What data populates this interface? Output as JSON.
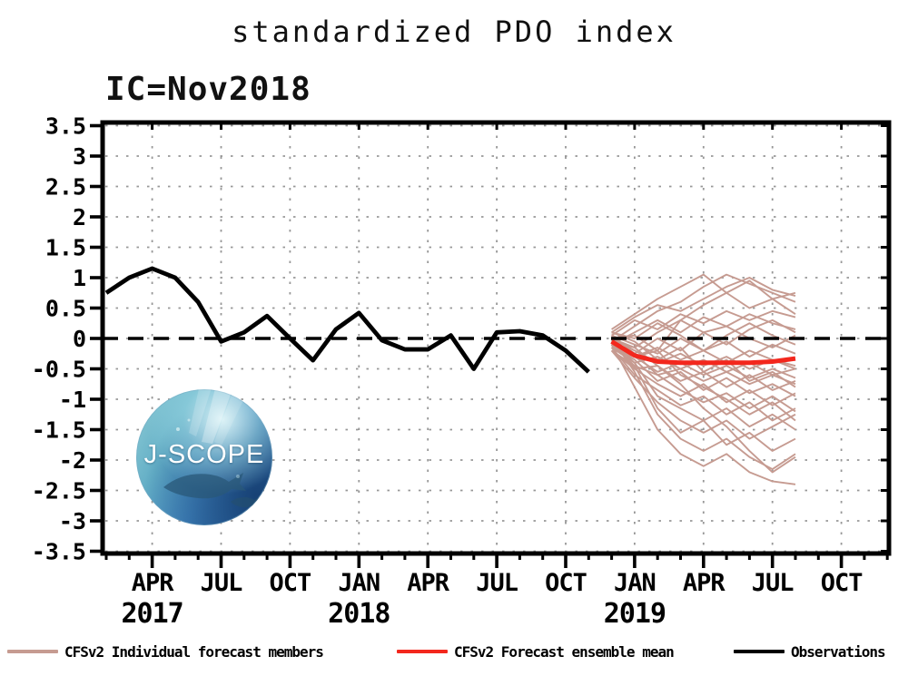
{
  "title": "standardized PDO index",
  "ic_label": "IC=Nov2018",
  "logo": {
    "text": "J-SCOPE"
  },
  "legend": {
    "members": {
      "label": "CFSv2 Individual forecast members",
      "color": "#c69b91"
    },
    "mean": {
      "label": "CFSv2 Forecast ensemble mean",
      "color": "#f3271d"
    },
    "obs": {
      "label": "Observations",
      "color": "#000000"
    }
  },
  "chart_data": {
    "type": "line",
    "title": "standardized PDO index",
    "initial_condition": "IC=Nov2018",
    "ylabel": "",
    "ylim": [
      -3.5,
      3.5
    ],
    "ytick_step": 0.5,
    "grid": "dotted",
    "zero_line": true,
    "x_unit": "months, index 0 = Feb 2017, axis spans Feb 2017 - Dec 2019",
    "x_ticks": [
      {
        "i": 2,
        "label": "APR"
      },
      {
        "i": 5,
        "label": "JUL"
      },
      {
        "i": 8,
        "label": "OCT"
      },
      {
        "i": 11,
        "label": "JAN"
      },
      {
        "i": 14,
        "label": "APR"
      },
      {
        "i": 17,
        "label": "JUL"
      },
      {
        "i": 20,
        "label": "OCT"
      },
      {
        "i": 23,
        "label": "JAN"
      },
      {
        "i": 26,
        "label": "APR"
      },
      {
        "i": 29,
        "label": "JUL"
      },
      {
        "i": 32,
        "label": "OCT"
      }
    ],
    "year_labels": [
      {
        "i": 2,
        "label": "2017"
      },
      {
        "i": 11,
        "label": "2018"
      },
      {
        "i": 23,
        "label": "2019"
      }
    ],
    "observations": {
      "name": "Observations",
      "color": "#000000",
      "start_index": 0,
      "values": [
        0.75,
        1.0,
        1.15,
        1.0,
        0.6,
        -0.05,
        0.1,
        0.37,
        0.0,
        -0.36,
        0.15,
        0.42,
        -0.03,
        -0.18,
        -0.18,
        0.05,
        -0.5,
        0.1,
        0.12,
        0.05,
        -0.2,
        -0.55
      ]
    },
    "ensemble_mean": {
      "name": "CFSv2 Forecast ensemble mean",
      "color": "#f3271d",
      "start_index": 22,
      "values": [
        -0.05,
        -0.28,
        -0.38,
        -0.4,
        -0.4,
        -0.4,
        -0.4,
        -0.38,
        -0.33
      ]
    },
    "members": {
      "name": "CFSv2 Individual forecast members",
      "color": "#c69b91",
      "start_index": 22,
      "series": [
        [
          0.1,
          0.35,
          0.55,
          0.45,
          0.65,
          0.85,
          1.0,
          0.8,
          0.7
        ],
        [
          -0.05,
          0.2,
          0.45,
          0.6,
          0.85,
          1.05,
          0.9,
          0.75,
          0.6
        ],
        [
          0.05,
          0.3,
          0.15,
          0.4,
          0.25,
          0.45,
          0.3,
          0.45,
          0.35
        ],
        [
          -0.1,
          0.1,
          0.3,
          0.1,
          0.35,
          0.2,
          0.4,
          0.25,
          0.15
        ],
        [
          0.0,
          -0.15,
          0.1,
          0.3,
          0.1,
          -0.1,
          0.15,
          0.3,
          0.1
        ],
        [
          0.1,
          0.0,
          0.25,
          0.05,
          -0.2,
          0.05,
          0.25,
          0.05,
          -0.1
        ],
        [
          -0.15,
          -0.25,
          0.0,
          -0.2,
          0.1,
          0.2,
          0.0,
          -0.15,
          0.05
        ],
        [
          0.05,
          -0.1,
          -0.25,
          0.0,
          -0.2,
          -0.05,
          -0.3,
          -0.1,
          -0.25
        ],
        [
          -0.1,
          -0.3,
          -0.15,
          -0.35,
          -0.2,
          -0.4,
          -0.2,
          -0.35,
          -0.45
        ],
        [
          0.0,
          -0.2,
          -0.4,
          -0.25,
          -0.45,
          -0.3,
          -0.5,
          -0.35,
          -0.5
        ],
        [
          -0.15,
          -0.4,
          -0.3,
          -0.5,
          -0.35,
          -0.55,
          -0.4,
          -0.6,
          -0.5
        ],
        [
          -0.05,
          -0.3,
          -0.55,
          -0.4,
          -0.6,
          -0.45,
          -0.65,
          -0.5,
          -0.65
        ],
        [
          -0.2,
          -0.45,
          -0.6,
          -0.5,
          -0.7,
          -0.55,
          -0.75,
          -0.6,
          -0.75
        ],
        [
          0.0,
          -0.5,
          -0.45,
          -0.7,
          -0.55,
          -0.8,
          -0.6,
          -0.85,
          -0.7
        ],
        [
          -0.1,
          -0.35,
          -0.7,
          -0.55,
          -0.85,
          -0.65,
          -0.9,
          -0.75,
          -0.95
        ],
        [
          -0.2,
          -0.5,
          -0.75,
          -0.95,
          -0.75,
          -1.05,
          -0.85,
          -1.1,
          -0.9
        ],
        [
          0.05,
          -0.25,
          -0.6,
          -0.85,
          -1.05,
          -0.9,
          -1.15,
          -0.95,
          -1.2
        ],
        [
          -0.15,
          -0.6,
          -0.85,
          -1.1,
          -0.95,
          -1.25,
          -1.05,
          -1.35,
          -1.15
        ],
        [
          -0.05,
          -0.4,
          -0.95,
          -1.15,
          -1.35,
          -1.15,
          -1.45,
          -1.25,
          -1.5
        ],
        [
          -0.2,
          -0.65,
          -1.05,
          -1.35,
          -1.55,
          -1.35,
          -1.65,
          -1.45,
          -1.25
        ],
        [
          -0.1,
          -0.45,
          -1.15,
          -1.55,
          -1.35,
          -1.75,
          -1.55,
          -1.85,
          -1.65
        ],
        [
          0.0,
          -0.55,
          -1.25,
          -1.65,
          -1.85,
          -1.65,
          -1.95,
          -2.15,
          -1.9
        ],
        [
          -0.1,
          -0.8,
          -1.5,
          -1.9,
          -2.1,
          -1.9,
          -2.2,
          -2.35,
          -2.4
        ],
        [
          0.15,
          0.4,
          0.65,
          0.85,
          1.05,
          0.75,
          0.95,
          0.65,
          0.75
        ],
        [
          -0.05,
          -0.15,
          -0.45,
          -0.75,
          -1.15,
          -1.45,
          -1.85,
          -2.2,
          -1.95
        ],
        [
          0.0,
          0.05,
          -0.2,
          0.3,
          0.55,
          0.75,
          0.5,
          0.65,
          0.4
        ],
        [
          -0.15,
          -0.3,
          -0.2,
          -0.6,
          -0.8,
          -1.0,
          -1.25,
          -1.05,
          -1.35
        ],
        [
          0.1,
          -0.05,
          -0.35,
          -0.15,
          -0.55,
          -0.35,
          -0.7,
          -0.55,
          -0.8
        ]
      ]
    }
  }
}
